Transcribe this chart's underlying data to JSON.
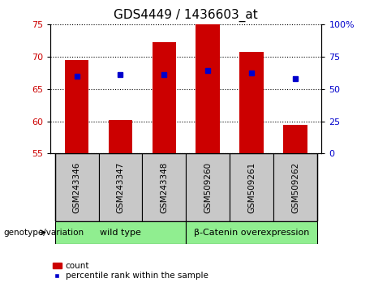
{
  "title": "GDS4449 / 1436603_at",
  "samples": [
    "GSM243346",
    "GSM243347",
    "GSM243348",
    "GSM509260",
    "GSM509261",
    "GSM509262"
  ],
  "bar_values": [
    69.5,
    60.2,
    72.3,
    75.0,
    70.7,
    59.4
  ],
  "bar_bottom": 55.0,
  "blue_dot_values": [
    67.0,
    67.2,
    67.2,
    67.8,
    67.5,
    66.6
  ],
  "ylim_left": [
    55,
    75
  ],
  "ylim_right": [
    0,
    100
  ],
  "yticks_left": [
    55,
    60,
    65,
    70,
    75
  ],
  "yticks_right": [
    0,
    25,
    50,
    75,
    100
  ],
  "ytick_labels_right": [
    "0",
    "25",
    "50",
    "75",
    "100%"
  ],
  "bar_color": "#cc0000",
  "dot_color": "#0000cc",
  "group1_label": "wild type",
  "group2_label": "β-Catenin overexpression",
  "group_color": "#90ee90",
  "sample_box_color": "#c8c8c8",
  "group_label_text": "genotype/variation",
  "legend_count": "count",
  "legend_percentile": "percentile rank within the sample",
  "background_color": "#ffffff",
  "tick_label_color_left": "#cc0000",
  "tick_label_color_right": "#0000cc",
  "bar_width": 0.55
}
